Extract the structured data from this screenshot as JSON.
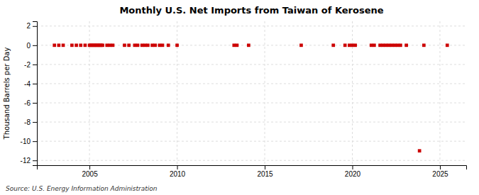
{
  "chart_data": {
    "type": "scatter",
    "title": "Monthly U.S. Net Imports from Taiwan of Kerosene",
    "ylabel": "Thousand Barrels per Day",
    "annotations": [
      "Source: U.S. Energy Information Administration"
    ],
    "xlim": [
      2002.0,
      2026.5
    ],
    "ylim": [
      -12.5,
      2.5
    ],
    "xticks": [
      2005,
      2010,
      2015,
      2020,
      2025
    ],
    "yticks": [
      2,
      0,
      -2,
      -4,
      -6,
      -8,
      -10,
      -12
    ],
    "grid": true,
    "color": "#cc0000",
    "marker": "square",
    "x": [
      2003.0,
      2003.25,
      2003.5,
      2004.0,
      2004.25,
      2004.5,
      2004.75,
      2005.0,
      2005.083,
      2005.167,
      2005.25,
      2005.333,
      2005.417,
      2005.5,
      2005.583,
      2005.667,
      2005.75,
      2006.0,
      2006.167,
      2006.333,
      2007.0,
      2007.25,
      2007.583,
      2007.75,
      2008.0,
      2008.167,
      2008.333,
      2008.583,
      2008.75,
      2009.0,
      2009.167,
      2009.5,
      2010.0,
      2013.25,
      2013.417,
      2014.083,
      2017.083,
      2018.917,
      2019.583,
      2019.833,
      2020.0,
      2020.167,
      2021.083,
      2021.25,
      2021.583,
      2021.75,
      2021.917,
      2022.083,
      2022.25,
      2022.417,
      2022.583,
      2022.75,
      2023.083,
      2023.833,
      2024.083,
      2025.417
    ],
    "values": [
      0,
      0,
      0,
      0,
      0,
      0,
      0,
      0,
      0,
      0,
      0,
      0,
      0,
      0,
      0,
      0,
      0,
      0,
      0,
      0,
      0,
      0,
      0,
      0,
      0,
      0,
      0,
      0,
      0,
      0,
      0,
      0,
      0,
      0,
      0,
      0,
      0,
      0,
      0,
      0,
      0,
      0,
      0,
      0,
      0,
      0,
      0,
      0,
      0,
      0,
      0,
      0,
      0,
      -11,
      0,
      0
    ]
  }
}
